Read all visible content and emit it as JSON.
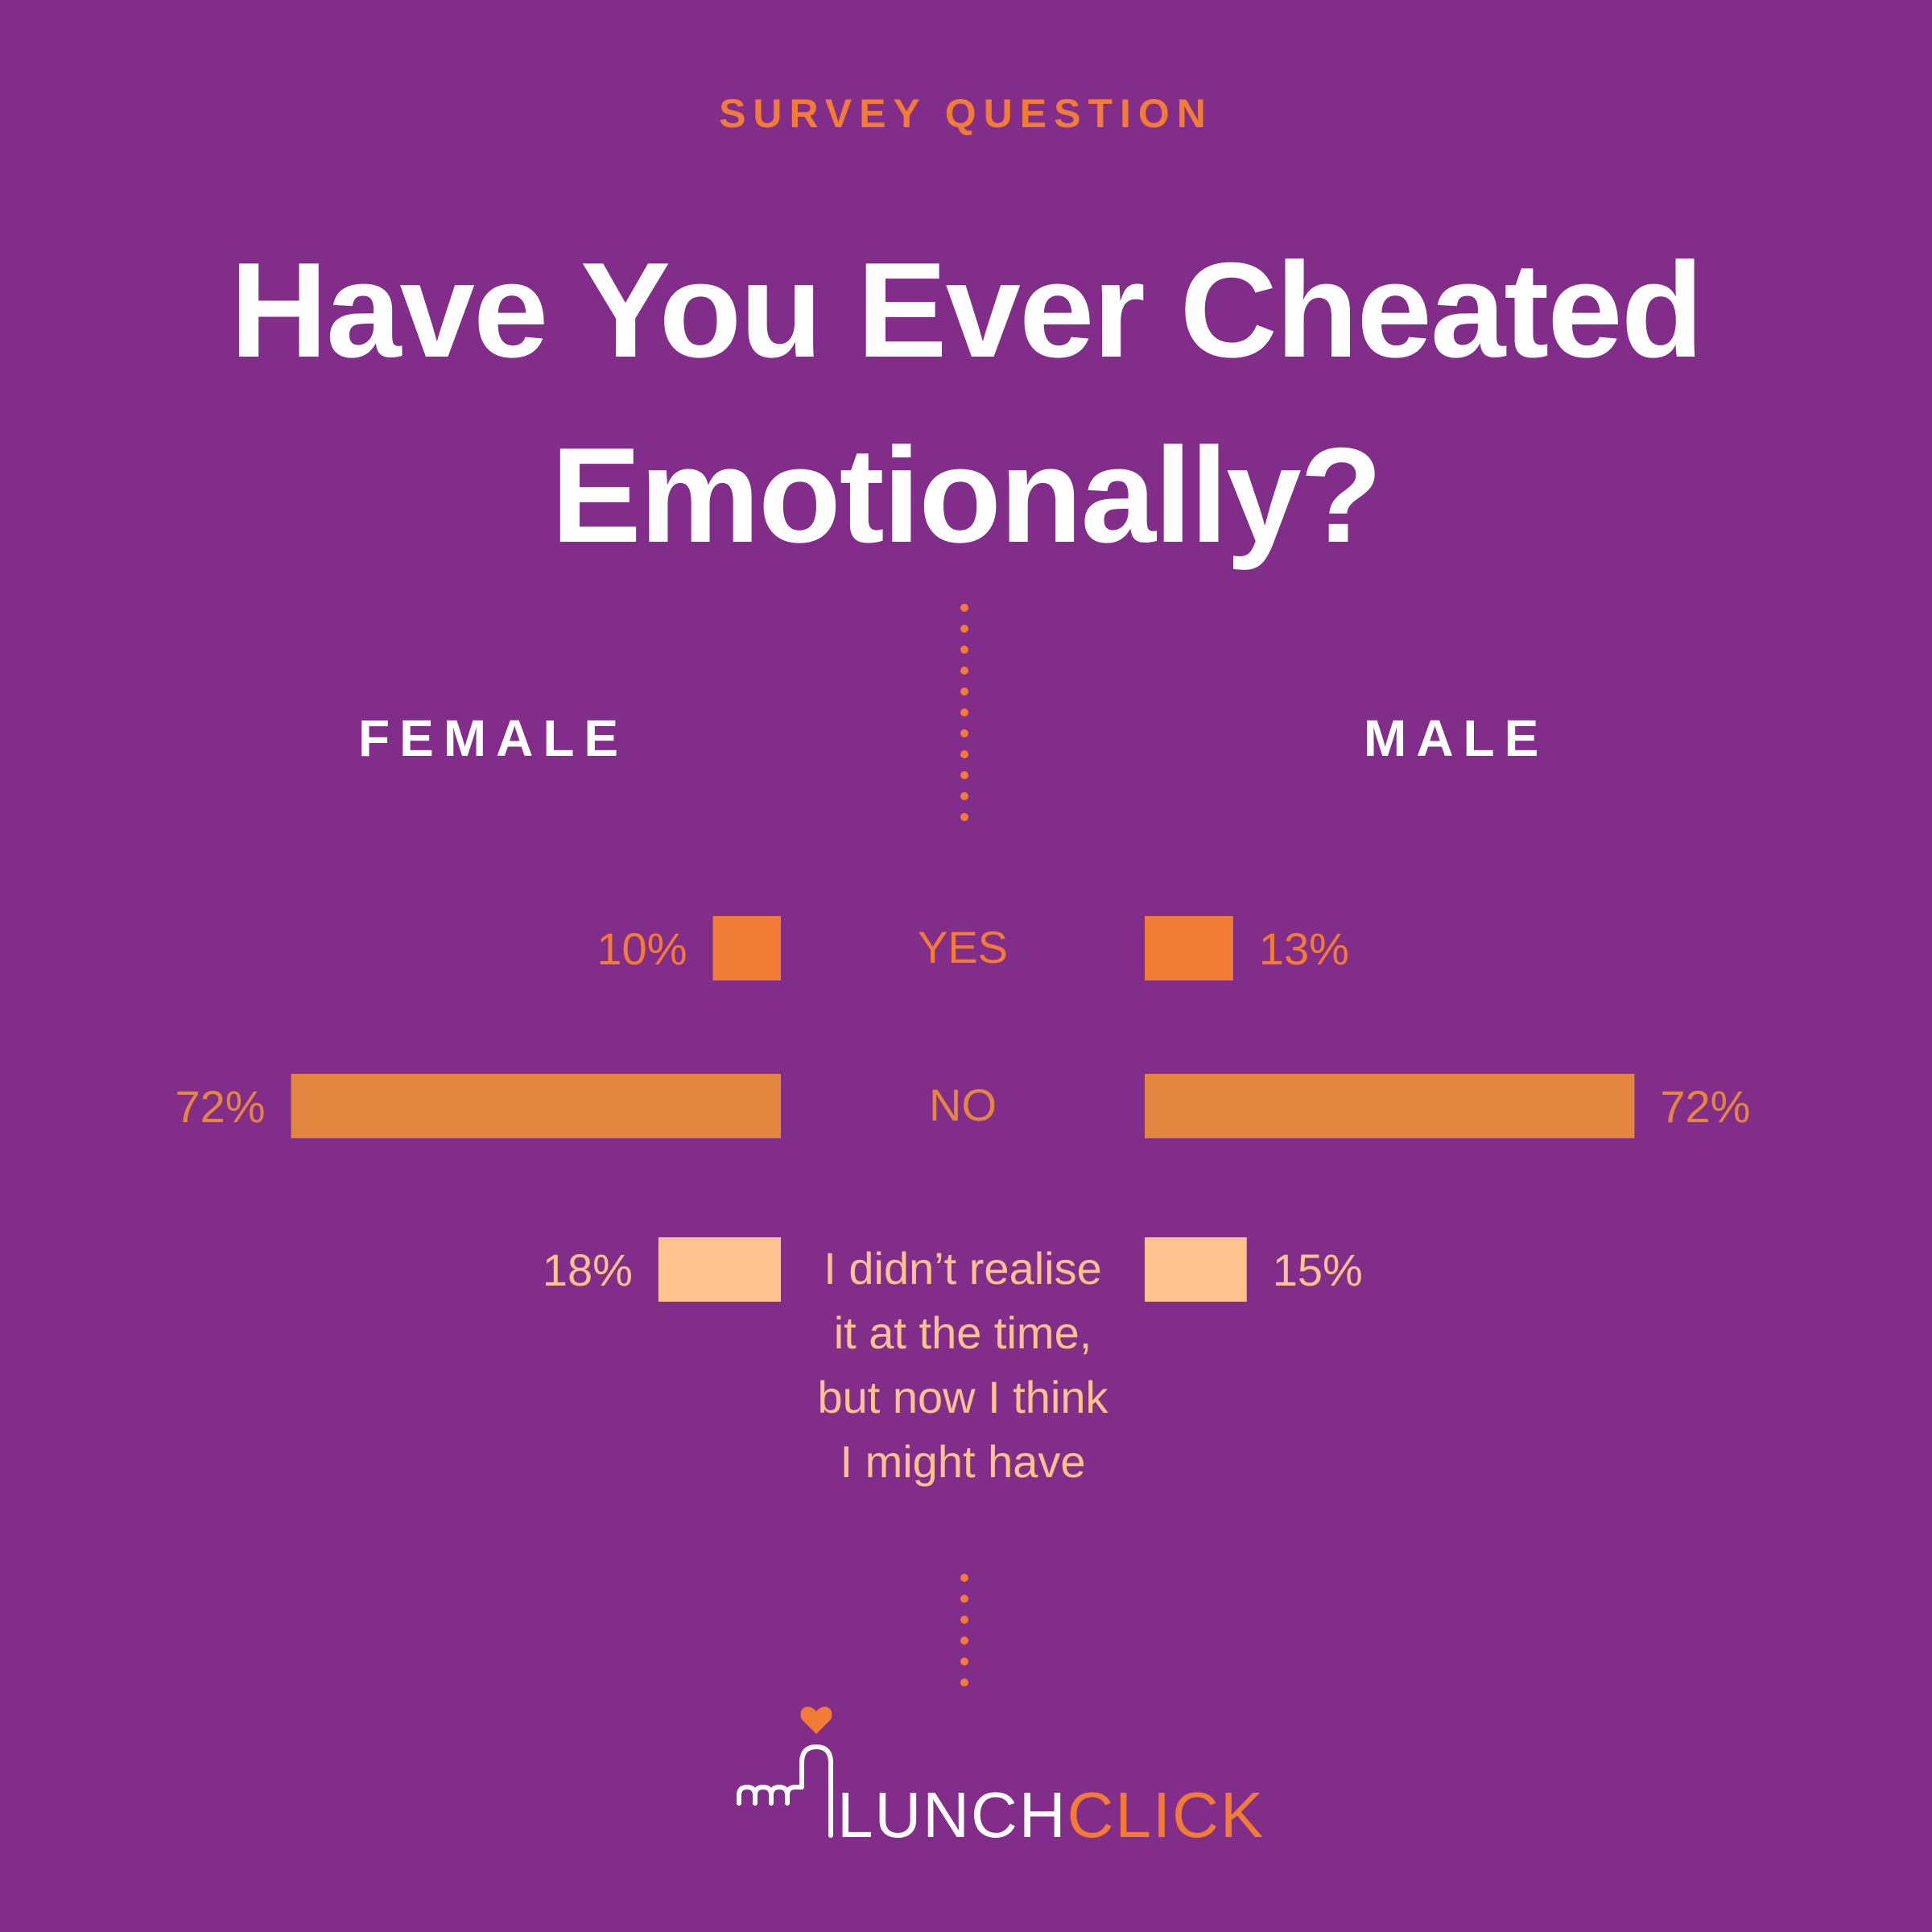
{
  "header": {
    "eyebrow": "SURVEY QUESTION",
    "title_line1": "Have You Ever Cheated",
    "title_line2": "Emotionally?"
  },
  "chart_data": {
    "type": "bar",
    "layout": "butterfly",
    "left_group": "FEMALE",
    "right_group": "MALE",
    "categories": [
      [
        "YES"
      ],
      [
        "NO"
      ],
      [
        "I didn’t realise",
        "it at the time,",
        "but now I think",
        "I might have"
      ]
    ],
    "series": [
      {
        "name": "FEMALE",
        "values": [
          10,
          72,
          18
        ],
        "labels": [
          "10%",
          "72%",
          "18%"
        ]
      },
      {
        "name": "MALE",
        "values": [
          13,
          72,
          15
        ],
        "labels": [
          "13%",
          "72%",
          "15%"
        ]
      }
    ],
    "unit": "%",
    "colors": [
      "#f07c36",
      "#e3863f",
      "#fcc38f"
    ],
    "label_colors": [
      "#f07c36",
      "#e3863f",
      "#fcc38f"
    ],
    "grid": false,
    "legend": "none"
  },
  "logo": {
    "text_white": "LUNCH",
    "text_orange": "CLICK",
    "heart_color": "#f07c36",
    "icon": "heart-hand-icon"
  }
}
